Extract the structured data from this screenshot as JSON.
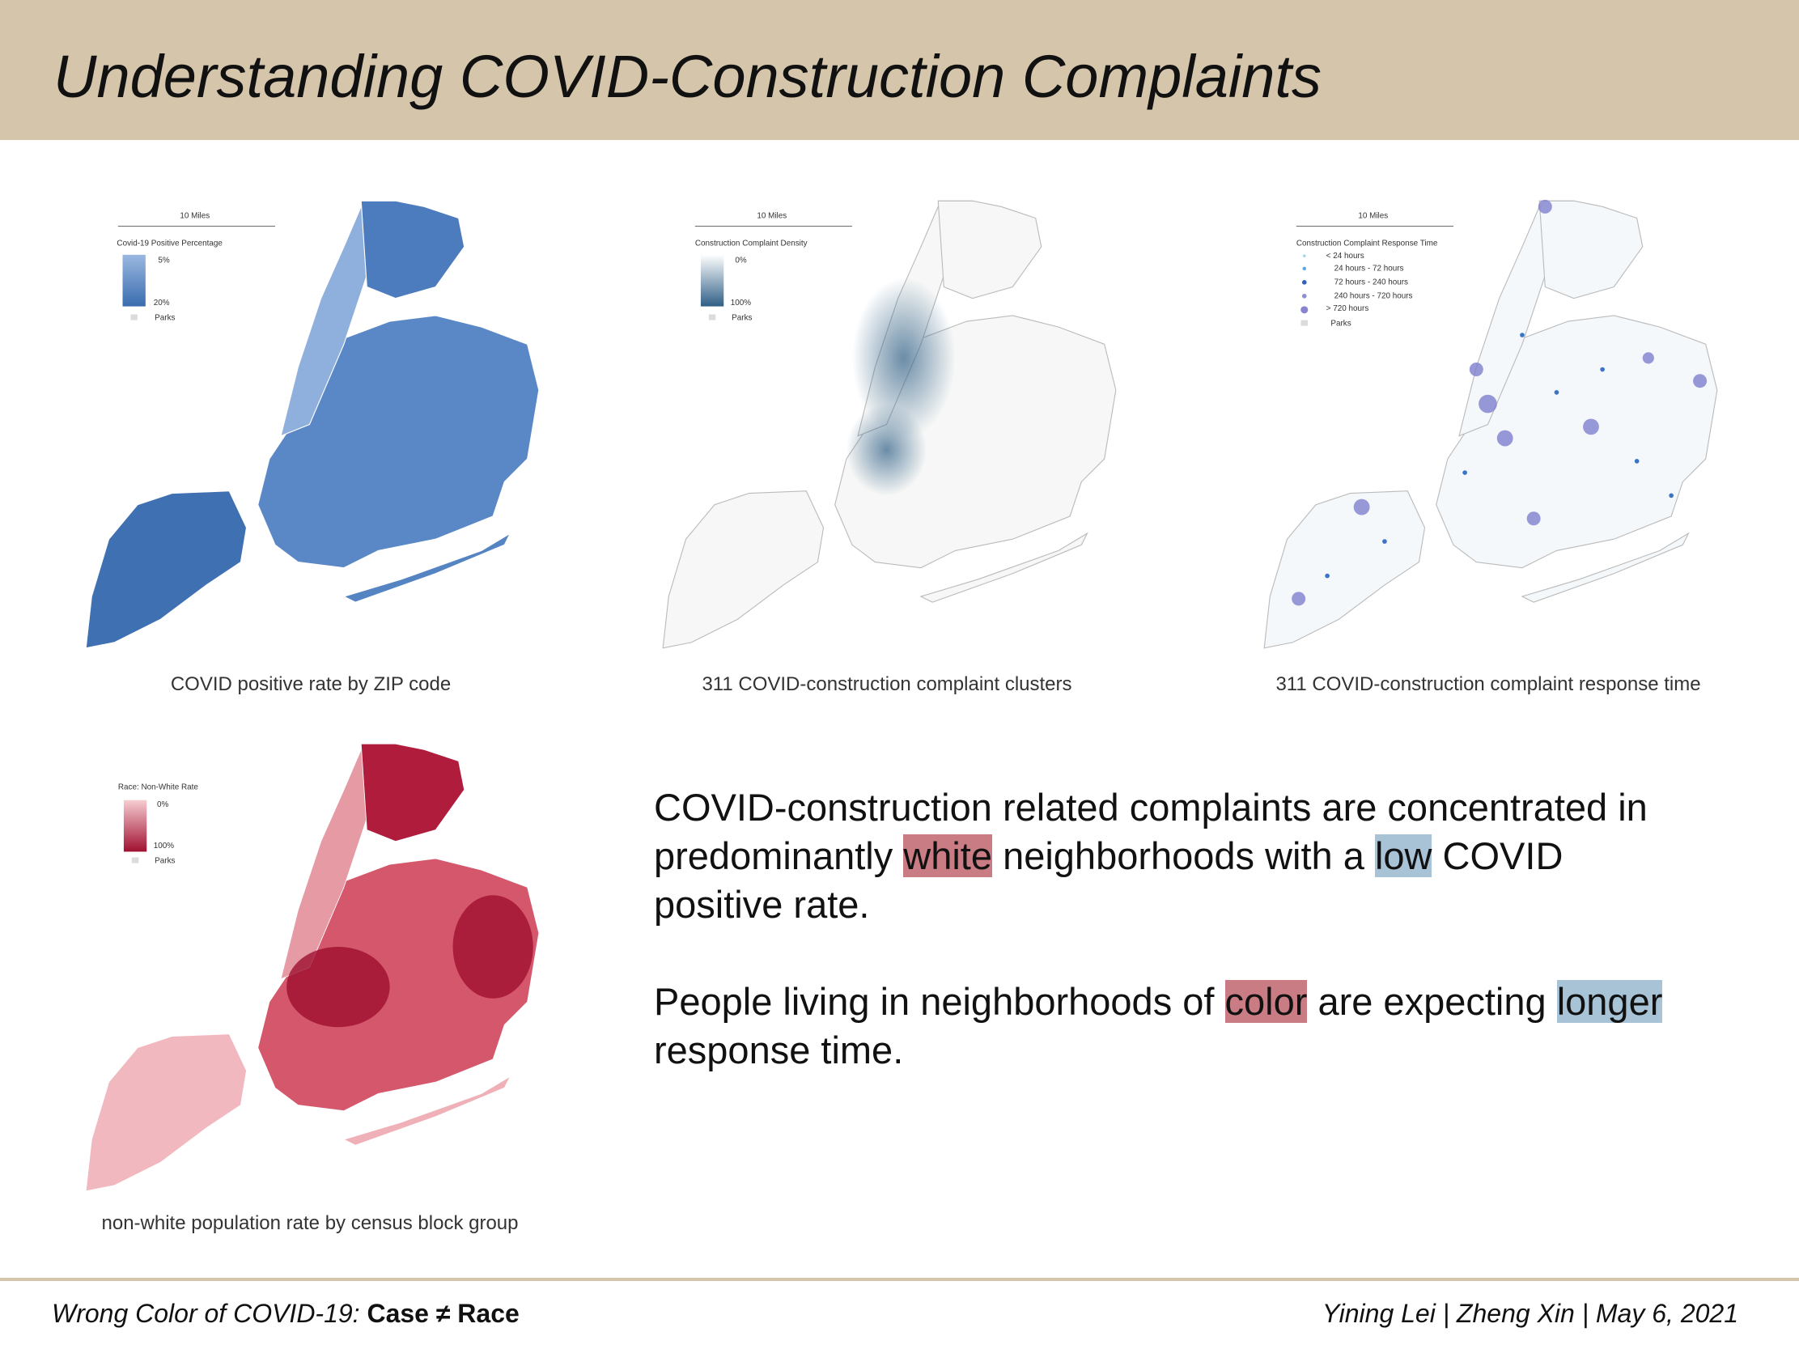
{
  "header": {
    "title": "Understanding COVID-Construction Complaints"
  },
  "maps": [
    {
      "caption": "COVID positive rate by ZIP code",
      "scale": "10 Miles",
      "legend": {
        "title": "Covid-19 Positive Percentage",
        "labels": [
          "5%",
          "20%",
          "Parks"
        ]
      }
    },
    {
      "caption": "311 COVID-construction complaint clusters",
      "scale": "10 Miles",
      "legend": {
        "title": "Construction Complaint Density",
        "labels": [
          "0%",
          "100%",
          "Parks"
        ]
      }
    },
    {
      "caption": "311 COVID-construction complaint response time",
      "scale": "10 Miles",
      "legend": {
        "title": "Construction Complaint Response Time",
        "labels": [
          "< 24 hours",
          "24 hours - 72 hours",
          "72 hours - 240 hours",
          "240 hours - 720 hours",
          "> 720 hours",
          "Parks"
        ]
      }
    },
    {
      "caption": "non-white population rate by census block group",
      "legend": {
        "title": "Race: Non-White Rate",
        "labels": [
          "0%",
          "100%",
          "Parks"
        ]
      }
    }
  ],
  "text": {
    "paragraphs": [
      [
        {
          "text": "COVID-construction related complaints are concentrated in predominantly "
        },
        {
          "text": "white",
          "highlight": "red"
        },
        {
          "text": " neighborhoods with a "
        },
        {
          "text": "low",
          "highlight": "blue"
        },
        {
          "text": " COVID positive rate."
        }
      ],
      [
        {
          "text": "People living in neighborhoods of "
        },
        {
          "text": "color",
          "highlight": "red"
        },
        {
          "text": " are expecting "
        },
        {
          "text": "longer",
          "highlight": "blue"
        },
        {
          "text": " response time."
        }
      ]
    ]
  },
  "footer": {
    "left": {
      "lead": "Wrong Color of COVID-19:",
      "emphasis": "Case ≠ Race"
    },
    "right": "Yining Lei | Zheng Xin | May 6, 2021"
  }
}
